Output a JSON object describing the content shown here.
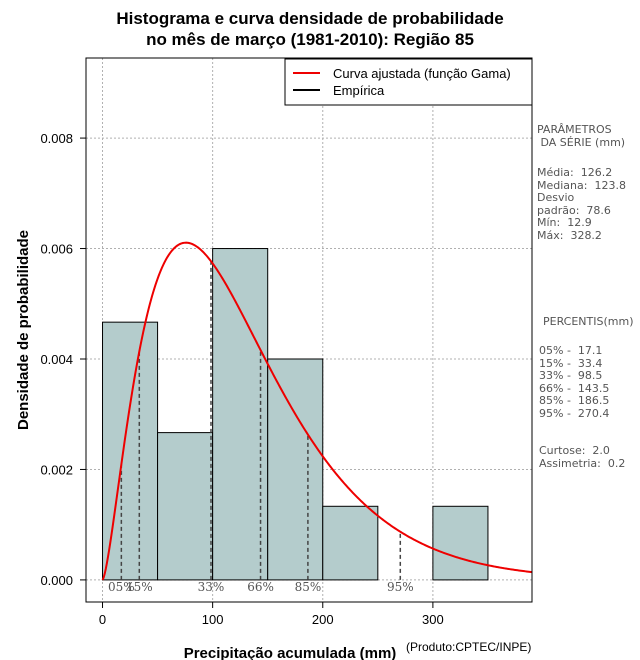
{
  "chart_data": {
    "type": "bar",
    "title_line1": "Histograma e curva densidade de probabilidade",
    "title_line2": "no mês de março (1981-2010): Região 85",
    "xlabel": "Precipitação acumulada (mm)",
    "ylabel": "Densidade de probabilidade",
    "credit": "(Produto:CPTEC/INPE)",
    "xlim": [
      -15,
      390
    ],
    "ylim": [
      -0.0004,
      0.00945
    ],
    "xticks": [
      0,
      100,
      200,
      300
    ],
    "xtick_labels": [
      "0",
      "100",
      "200",
      "300"
    ],
    "yticks": [
      0.0,
      0.002,
      0.004,
      0.006,
      0.008
    ],
    "ytick_labels": [
      "0.000",
      "0.002",
      "0.004",
      "0.006",
      "0.008"
    ],
    "bins": [
      {
        "x0": 0,
        "x1": 50,
        "density": 0.004667
      },
      {
        "x0": 50,
        "x1": 100,
        "density": 0.002667
      },
      {
        "x0": 100,
        "x1": 150,
        "density": 0.006
      },
      {
        "x0": 150,
        "x1": 200,
        "density": 0.004
      },
      {
        "x0": 200,
        "x1": 250,
        "density": 0.001333
      },
      {
        "x0": 250,
        "x1": 300,
        "density": 0.0
      },
      {
        "x0": 300,
        "x1": 350,
        "density": 0.001333
      }
    ],
    "gamma_fit": {
      "shape": 2.5,
      "scale": 50.5
    },
    "percentile_markers": [
      {
        "label": "05%",
        "value": 17.1
      },
      {
        "label": "15%",
        "value": 33.4
      },
      {
        "label": "33%",
        "value": 98.5
      },
      {
        "label": "66%",
        "value": 143.5
      },
      {
        "label": "85%",
        "value": 186.5
      },
      {
        "label": "95%",
        "value": 270.4
      }
    ],
    "legend": {
      "position": "top-right",
      "fitted": "Curva ajustada (função Gama)",
      "empirical": "Empírica"
    },
    "colors": {
      "bar": "#b4cccc",
      "curve": "#ee0000",
      "grid": "#b0b0b0"
    }
  },
  "side_panel": {
    "parametros_title": "PARÂMETROS\n DA SÉRIE (mm)",
    "parametros": "Média:  126.2\nMediana:  123.8\nDesvio\npadrão:  78.6\nMín:  12.9\nMáx:  328.2",
    "percentis_title": "PERCENTIS(mm)",
    "percentis": "05% -  17.1\n15% -  33.4\n33% -  98.5\n66% -  143.5\n85% -  186.5\n95% -  270.4",
    "extras": "Curtose:  2.0\nAssimetria:  0.2"
  }
}
